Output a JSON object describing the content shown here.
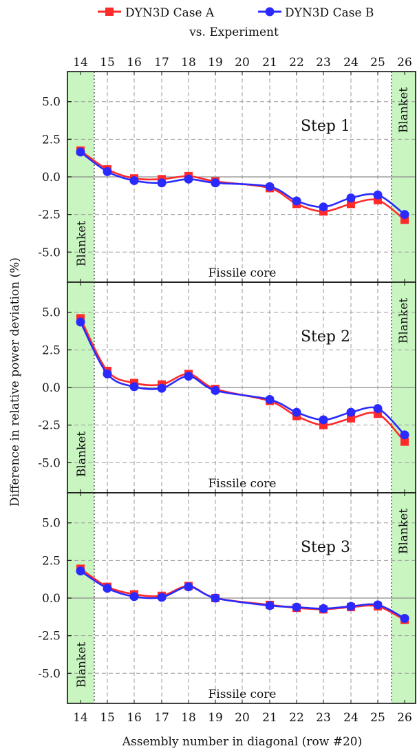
{
  "chart_data": {
    "type": "line",
    "legend": {
      "placement": "top-center",
      "entries": [
        "DYN3D Case A",
        "DYN3D Case B"
      ],
      "subtitle": "vs. Experiment"
    },
    "xlabel": "Assembly number in diagonal (row #20)",
    "ylabel": "Difference in relative power deviation (%)",
    "x": [
      14,
      15,
      16,
      17,
      18,
      19,
      20,
      21,
      22,
      23,
      24,
      25,
      26
    ],
    "xlim": [
      14,
      26
    ],
    "ylim": [
      -7,
      7
    ],
    "yticks": [
      "5.0",
      "2.5",
      "0.0",
      "-2.5",
      "-5.0"
    ],
    "grid": true,
    "zero_line": true,
    "series_colors": {
      "DYN3D Case A": "#ff2a2a",
      "DYN3D Case B": "#2a2aff"
    },
    "blanket_color": "#c8f5c0",
    "blanket_label": "Blanket",
    "core_label": "Fissile core",
    "panels": [
      {
        "title": "Step 1",
        "points_x": [
          14,
          15,
          16,
          17,
          18,
          19,
          21,
          22,
          23,
          24,
          25,
          26
        ],
        "series": [
          {
            "name": "DYN3D Case A",
            "values": [
              1.75,
              0.5,
              -0.1,
              -0.15,
              0.05,
              -0.3,
              -0.75,
              -1.8,
              -2.3,
              -1.8,
              -1.55,
              -2.85
            ]
          },
          {
            "name": "DYN3D Case B",
            "values": [
              1.65,
              0.35,
              -0.25,
              -0.4,
              -0.15,
              -0.4,
              -0.65,
              -1.6,
              -2.0,
              -1.4,
              -1.2,
              -2.5
            ]
          }
        ]
      },
      {
        "title": "Step 2",
        "points_x": [
          14,
          15,
          16,
          17,
          18,
          19,
          21,
          22,
          23,
          24,
          25,
          26
        ],
        "series": [
          {
            "name": "DYN3D Case A",
            "values": [
              4.6,
              1.1,
              0.3,
              0.2,
              0.9,
              -0.1,
              -0.9,
              -1.9,
              -2.5,
              -2.05,
              -1.75,
              -3.6
            ]
          },
          {
            "name": "DYN3D Case B",
            "values": [
              4.35,
              0.9,
              0.05,
              -0.05,
              0.75,
              -0.2,
              -0.8,
              -1.65,
              -2.15,
              -1.65,
              -1.4,
              -3.15
            ]
          }
        ]
      },
      {
        "title": "Step 3",
        "points_x": [
          14,
          15,
          16,
          17,
          18,
          19,
          21,
          22,
          23,
          24,
          25,
          26
        ],
        "series": [
          {
            "name": "DYN3D Case A",
            "values": [
              1.95,
              0.75,
              0.25,
              0.15,
              0.8,
              0.0,
              -0.45,
              -0.65,
              -0.75,
              -0.6,
              -0.55,
              -1.45
            ]
          },
          {
            "name": "DYN3D Case B",
            "values": [
              1.8,
              0.65,
              0.1,
              0.05,
              0.75,
              0.0,
              -0.5,
              -0.6,
              -0.7,
              -0.55,
              -0.45,
              -1.35
            ]
          }
        ]
      }
    ]
  }
}
